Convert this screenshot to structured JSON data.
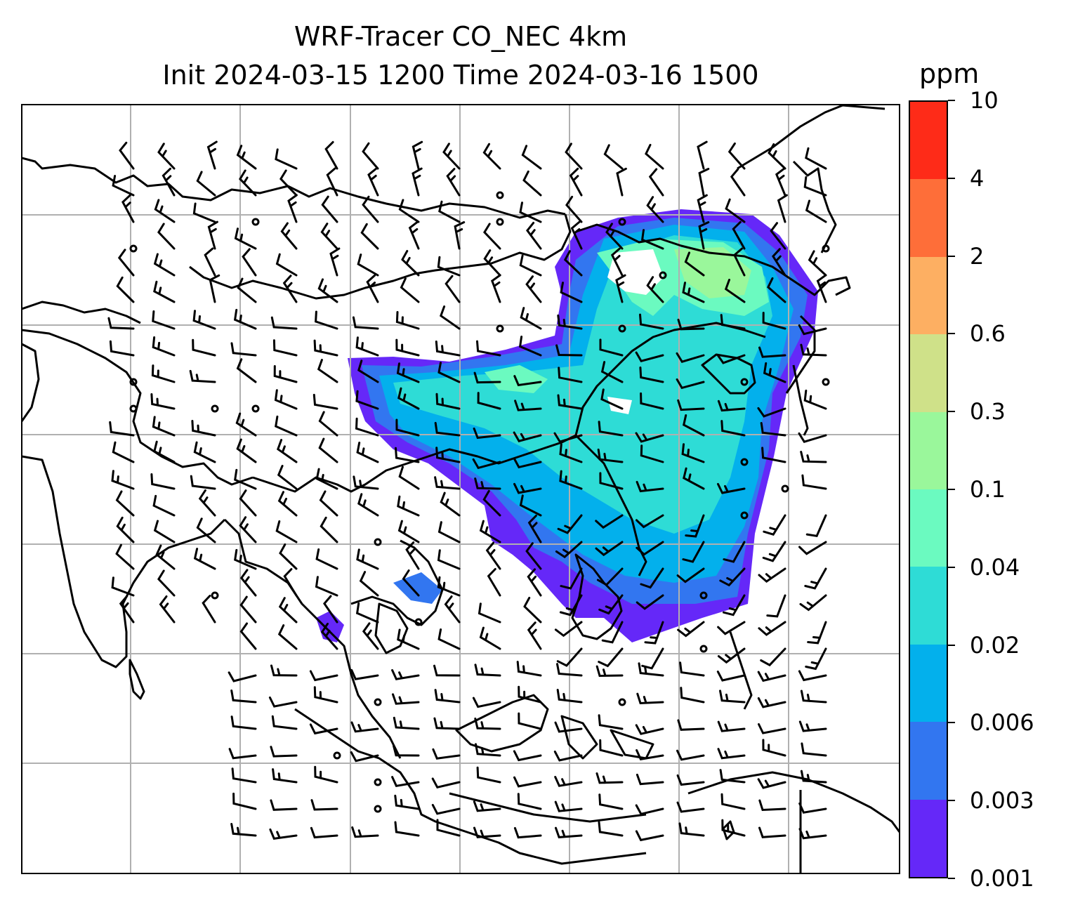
{
  "map": {
    "title_line1": "WRF-Tracer CO_NEC 4km",
    "title_line2": "Init 2024-03-15 1200 Time 2024-03-16 1500",
    "colorbar": {
      "unit": "ppm",
      "tick_labels": [
        "0.001",
        "0.003",
        "0.006",
        "0.02",
        "0.04",
        "0.1",
        "0.3",
        "0.6",
        "2",
        "4",
        "10"
      ],
      "colors": [
        "#6528f8",
        "#3276f0",
        "#03b0ec",
        "#2edcd6",
        "#6bfac0",
        "#9af79b",
        "#cfe189",
        "#fdaf62",
        "#fe6e39",
        "#fe2b18"
      ]
    },
    "field_name": "CO_NEC tracer concentration",
    "overlay": "wind barbs",
    "gridlines": true,
    "coastlines": true
  }
}
